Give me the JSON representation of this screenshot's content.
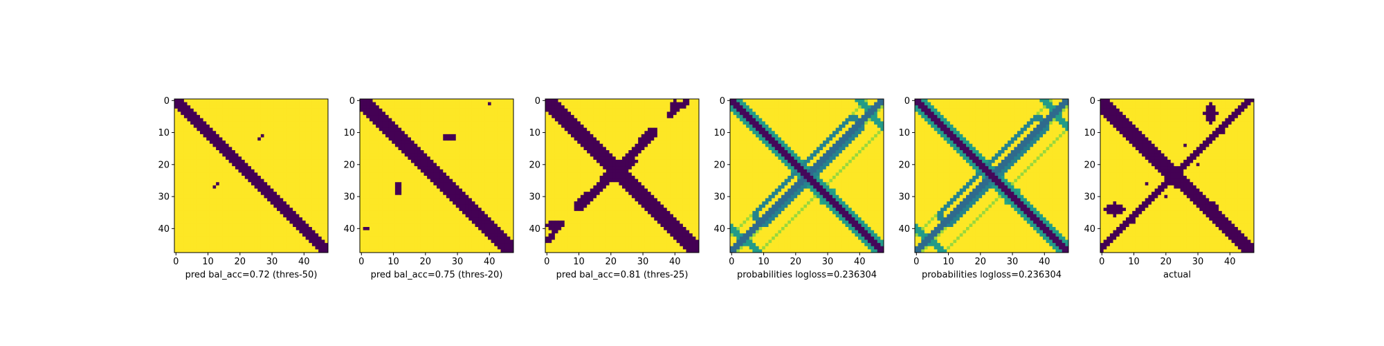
{
  "chart_data": [
    {
      "type": "heatmap",
      "xlabel": "pred bal_acc=0.72 (thres-50)",
      "xlim": [
        0,
        47
      ],
      "ylim": [
        0,
        47
      ],
      "xticks": [
        0,
        10,
        20,
        30,
        40
      ],
      "yticks": [
        0,
        10,
        20,
        30,
        40
      ],
      "pattern": "binary",
      "diag_width": 2,
      "features": [
        {
          "kind": "dots",
          "points": [
            [
              26,
              12
            ],
            [
              27,
              11
            ],
            [
              13,
              26
            ],
            [
              12,
              27
            ]
          ]
        }
      ]
    },
    {
      "type": "heatmap",
      "xlabel": "pred bal_acc=0.75 (thres-20)",
      "xlim": [
        0,
        47
      ],
      "ylim": [
        0,
        47
      ],
      "xticks": [
        0,
        10,
        20,
        30,
        40
      ],
      "yticks": [
        0,
        10,
        20,
        30,
        40
      ],
      "pattern": "binary",
      "diag_width": 3,
      "features": [
        {
          "kind": "blob",
          "c": [
            27.5,
            11.5
          ],
          "rx": 2.5,
          "ry": 1.5
        },
        {
          "kind": "blob",
          "c": [
            11.5,
            27.5
          ],
          "rx": 1.5,
          "ry": 2.5
        },
        {
          "kind": "dots",
          "points": [
            [
              40,
              1
            ],
            [
              1,
              40
            ],
            [
              2,
              40
            ]
          ]
        }
      ]
    },
    {
      "type": "heatmap",
      "xlabel": "pred bal_acc=0.81 (thres-25)",
      "xlim": [
        0,
        47
      ],
      "ylim": [
        0,
        47
      ],
      "xticks": [
        0,
        10,
        20,
        30,
        40
      ],
      "yticks": [
        0,
        10,
        20,
        30,
        40
      ],
      "pattern": "binary",
      "diag_width": 3,
      "features": [
        {
          "kind": "band",
          "from": [
            20,
            24
          ],
          "to": [
            33,
            10
          ],
          "width": 1.6
        },
        {
          "kind": "band",
          "from": [
            10,
            33
          ],
          "to": [
            24,
            20
          ],
          "width": 1.6
        },
        {
          "kind": "band",
          "from": [
            19,
            24
          ],
          "to": [
            26,
            19
          ],
          "width": 2.2
        },
        {
          "kind": "band",
          "from": [
            38,
            5
          ],
          "to": [
            44,
            0
          ],
          "width": 0.9
        },
        {
          "kind": "band",
          "from": [
            0,
            44
          ],
          "to": [
            5,
            38
          ],
          "width": 0.9
        },
        {
          "kind": "blob",
          "c": [
            2,
            39
          ],
          "rx": 2,
          "ry": 1.5
        },
        {
          "kind": "blob",
          "c": [
            40,
            2
          ],
          "rx": 1.5,
          "ry": 2
        }
      ]
    },
    {
      "type": "heatmap",
      "xlabel": "probabilities logloss=0.236304",
      "xlim": [
        0,
        47
      ],
      "ylim": [
        0,
        47
      ],
      "xticks": [
        0,
        10,
        20,
        30,
        40
      ],
      "yticks": [
        0,
        10,
        20,
        30,
        40
      ],
      "pattern": "probability",
      "diag_width": 2
    },
    {
      "type": "heatmap",
      "xlabel": "probabilities logloss=0.236304",
      "xlim": [
        0,
        47
      ],
      "ylim": [
        0,
        47
      ],
      "xticks": [
        0,
        10,
        20,
        30,
        40
      ],
      "yticks": [
        0,
        10,
        20,
        30,
        40
      ],
      "pattern": "probability",
      "diag_width": 2
    },
    {
      "type": "heatmap",
      "xlabel": "actual",
      "xlim": [
        0,
        47
      ],
      "ylim": [
        0,
        47
      ],
      "xticks": [
        0,
        10,
        20,
        30,
        40
      ],
      "yticks": [
        0,
        10,
        20,
        30,
        40
      ],
      "pattern": "binary",
      "diag_width": 2,
      "features": [
        {
          "kind": "band",
          "from": [
            0,
            46
          ],
          "to": [
            46,
            0
          ],
          "width": 1.2
        },
        {
          "kind": "band",
          "from": [
            0,
            2
          ],
          "to": [
            46,
            47
          ],
          "width": 1.8
        },
        {
          "kind": "blob",
          "c": [
            34,
            34
          ],
          "rx": 2.5,
          "ry": 2.5
        },
        {
          "kind": "blob",
          "c": [
            34,
            4
          ],
          "rx": 2,
          "ry": 3
        },
        {
          "kind": "blob",
          "c": [
            4,
            34
          ],
          "rx": 3,
          "ry": 2
        },
        {
          "kind": "dots",
          "points": [
            [
              11,
              35
            ],
            [
              35,
              11
            ],
            [
              20,
              30
            ],
            [
              30,
              20
            ],
            [
              10,
              38
            ],
            [
              38,
              10
            ],
            [
              44,
              3
            ],
            [
              3,
              44
            ],
            [
              14,
              26
            ],
            [
              26,
              14
            ],
            [
              44,
              47
            ]
          ]
        }
      ]
    }
  ],
  "colors": {
    "low": "#440154",
    "high": "#fde725"
  }
}
